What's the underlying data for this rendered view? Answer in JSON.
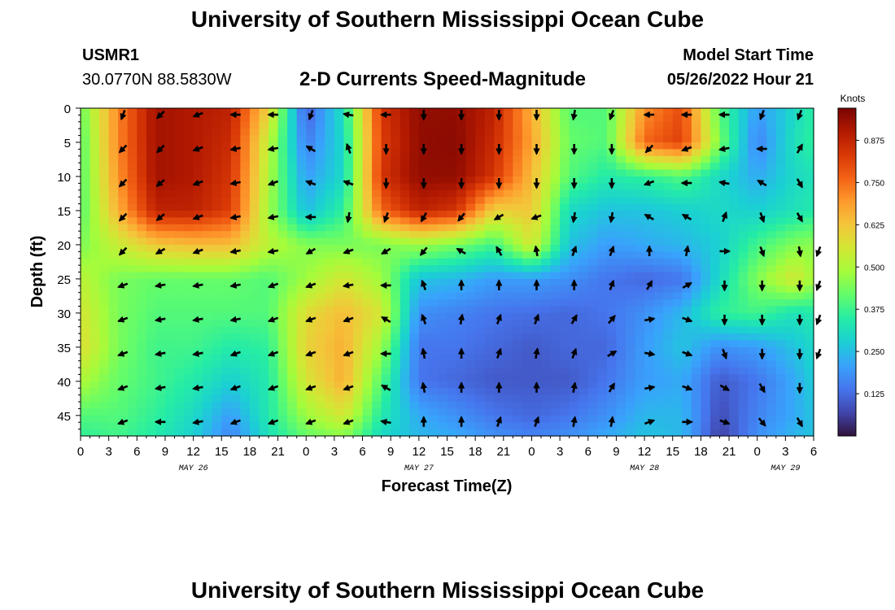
{
  "header": {
    "title": "University of Southern Mississippi Ocean Cube",
    "station_id": "USMR1",
    "station_coords": "30.0770N  88.5830W",
    "subtitle": "2-D Currents Speed-Magnitude",
    "model_start_label": "Model Start Time",
    "model_start_value": "05/26/2022 Hour 21"
  },
  "footer": {
    "title": "University of Southern Mississippi Ocean Cube"
  },
  "colors": {
    "colormap": [
      "#30123b",
      "#4145ab",
      "#4675ed",
      "#39a2fc",
      "#1bcfd4",
      "#24eca6",
      "#61fc6c",
      "#a4fc3b",
      "#d1e834",
      "#f3c63a",
      "#fe9b2d",
      "#f36315",
      "#d93806",
      "#b11901",
      "#7a0402"
    ]
  },
  "chart_data": {
    "type": "heatmap",
    "xlabel": "Forecast Time(Z)",
    "ylabel": "Depth (ft)",
    "x_ticks": [
      "0",
      "3",
      "6",
      "9",
      "12",
      "15",
      "18",
      "21",
      "0",
      "3",
      "6",
      "9",
      "12",
      "15",
      "18",
      "21",
      "0",
      "3",
      "6",
      "9",
      "12",
      "15",
      "18",
      "21",
      "0",
      "3",
      "6"
    ],
    "x_date_labels": [
      {
        "label": "MAY 26",
        "hour_offset": 12
      },
      {
        "label": "MAY 27",
        "hour_offset": 36
      },
      {
        "label": "MAY 28",
        "hour_offset": 60
      },
      {
        "label": "MAY 29",
        "hour_offset": 75
      }
    ],
    "xlim": [
      0,
      78
    ],
    "y_ticks": [
      0,
      5,
      10,
      15,
      20,
      25,
      30,
      35,
      40,
      45
    ],
    "ylim": [
      0,
      48
    ],
    "colorbar": {
      "label": "Knots",
      "ticks": [
        "0.875",
        "0.750",
        "0.625",
        "0.500",
        "0.375",
        "0.250",
        "0.125"
      ],
      "range": [
        0.0,
        0.97
      ]
    },
    "grid_hours": [
      0,
      4,
      8,
      12,
      16,
      20,
      24,
      28,
      32,
      36,
      40,
      44,
      48,
      52,
      56,
      60,
      64,
      68,
      72,
      76,
      78
    ],
    "grid_depths": [
      0,
      5,
      10,
      15,
      20,
      25,
      30,
      35,
      40,
      45,
      48
    ],
    "speed_knots": [
      [
        0.42,
        0.72,
        0.92,
        0.9,
        0.88,
        0.6,
        0.1,
        0.32,
        0.84,
        0.94,
        0.94,
        0.88,
        0.66,
        0.4,
        0.4,
        0.7,
        0.8,
        0.4,
        0.2,
        0.3,
        0.35
      ],
      [
        0.4,
        0.72,
        0.92,
        0.9,
        0.86,
        0.52,
        0.15,
        0.3,
        0.82,
        0.94,
        0.95,
        0.86,
        0.68,
        0.42,
        0.4,
        0.76,
        0.82,
        0.44,
        0.16,
        0.32,
        0.36
      ],
      [
        0.4,
        0.7,
        0.92,
        0.9,
        0.84,
        0.5,
        0.2,
        0.3,
        0.84,
        0.94,
        0.94,
        0.84,
        0.64,
        0.4,
        0.34,
        0.36,
        0.4,
        0.3,
        0.22,
        0.3,
        0.32
      ],
      [
        0.4,
        0.66,
        0.88,
        0.88,
        0.82,
        0.48,
        0.25,
        0.36,
        0.76,
        0.88,
        0.84,
        0.6,
        0.62,
        0.3,
        0.26,
        0.26,
        0.28,
        0.3,
        0.28,
        0.32,
        0.34
      ],
      [
        0.44,
        0.54,
        0.62,
        0.64,
        0.64,
        0.52,
        0.45,
        0.44,
        0.44,
        0.48,
        0.44,
        0.38,
        0.56,
        0.26,
        0.2,
        0.22,
        0.24,
        0.28,
        0.38,
        0.45,
        0.46
      ],
      [
        0.52,
        0.44,
        0.42,
        0.42,
        0.42,
        0.4,
        0.48,
        0.56,
        0.48,
        0.26,
        0.24,
        0.2,
        0.2,
        0.18,
        0.14,
        0.12,
        0.14,
        0.3,
        0.45,
        0.56,
        0.48
      ],
      [
        0.56,
        0.44,
        0.4,
        0.4,
        0.4,
        0.4,
        0.58,
        0.64,
        0.56,
        0.18,
        0.16,
        0.14,
        0.13,
        0.12,
        0.14,
        0.18,
        0.24,
        0.36,
        0.38,
        0.32,
        0.34
      ],
      [
        0.58,
        0.44,
        0.38,
        0.38,
        0.34,
        0.36,
        0.6,
        0.66,
        0.48,
        0.14,
        0.14,
        0.12,
        0.1,
        0.12,
        0.12,
        0.2,
        0.26,
        0.18,
        0.2,
        0.26,
        0.3
      ],
      [
        0.5,
        0.42,
        0.38,
        0.34,
        0.28,
        0.34,
        0.56,
        0.66,
        0.4,
        0.14,
        0.12,
        0.1,
        0.1,
        0.1,
        0.14,
        0.2,
        0.22,
        0.1,
        0.14,
        0.22,
        0.28
      ],
      [
        0.4,
        0.4,
        0.36,
        0.3,
        0.2,
        0.34,
        0.48,
        0.56,
        0.34,
        0.22,
        0.18,
        0.14,
        0.12,
        0.14,
        0.18,
        0.24,
        0.24,
        0.08,
        0.16,
        0.22,
        0.26
      ],
      [
        0.36,
        0.38,
        0.34,
        0.28,
        0.16,
        0.32,
        0.42,
        0.46,
        0.3,
        0.24,
        0.22,
        0.18,
        0.16,
        0.18,
        0.22,
        0.26,
        0.24,
        0.06,
        0.18,
        0.24,
        0.26
      ]
    ],
    "vector_hours": [
      4,
      8,
      12,
      16,
      20,
      24,
      28,
      32,
      36,
      40,
      44,
      48,
      52,
      56,
      60,
      64,
      68,
      72,
      76,
      78
    ],
    "vector_depths": [
      0,
      5,
      10,
      15,
      20,
      25,
      30,
      35,
      40,
      45
    ],
    "vector_dir_deg": [
      [
        200,
        225,
        250,
        270,
        270,
        200,
        280,
        270,
        180,
        180,
        180,
        180,
        190,
        200,
        270,
        270,
        270,
        200,
        200,
        null
      ],
      [
        225,
        225,
        250,
        260,
        260,
        300,
        340,
        180,
        180,
        180,
        180,
        180,
        180,
        180,
        225,
        250,
        260,
        270,
        30,
        null
      ],
      [
        225,
        230,
        250,
        260,
        250,
        290,
        290,
        180,
        180,
        180,
        180,
        180,
        180,
        180,
        250,
        270,
        280,
        300,
        150,
        null
      ],
      [
        225,
        230,
        250,
        260,
        260,
        270,
        190,
        200,
        210,
        220,
        240,
        250,
        190,
        190,
        300,
        300,
        20,
        160,
        150,
        null
      ],
      [
        225,
        240,
        250,
        260,
        260,
        240,
        250,
        240,
        220,
        300,
        330,
        350,
        20,
        20,
        0,
        10,
        90,
        160,
        170,
        200
      ],
      [
        250,
        260,
        260,
        260,
        250,
        250,
        260,
        270,
        340,
        0,
        0,
        0,
        0,
        20,
        30,
        60,
        180,
        180,
        180,
        200
      ],
      [
        250,
        260,
        260,
        260,
        250,
        250,
        250,
        300,
        340,
        10,
        20,
        20,
        30,
        40,
        80,
        110,
        180,
        180,
        180,
        200
      ],
      [
        250,
        260,
        260,
        250,
        250,
        250,
        250,
        270,
        350,
        0,
        20,
        10,
        20,
        60,
        100,
        110,
        160,
        180,
        180,
        200
      ],
      [
        250,
        260,
        260,
        250,
        250,
        250,
        250,
        300,
        350,
        0,
        0,
        0,
        10,
        30,
        80,
        110,
        120,
        150,
        180,
        null
      ],
      [
        250,
        270,
        260,
        250,
        250,
        250,
        250,
        280,
        0,
        0,
        20,
        20,
        10,
        10,
        70,
        90,
        110,
        140,
        150,
        null
      ]
    ]
  }
}
